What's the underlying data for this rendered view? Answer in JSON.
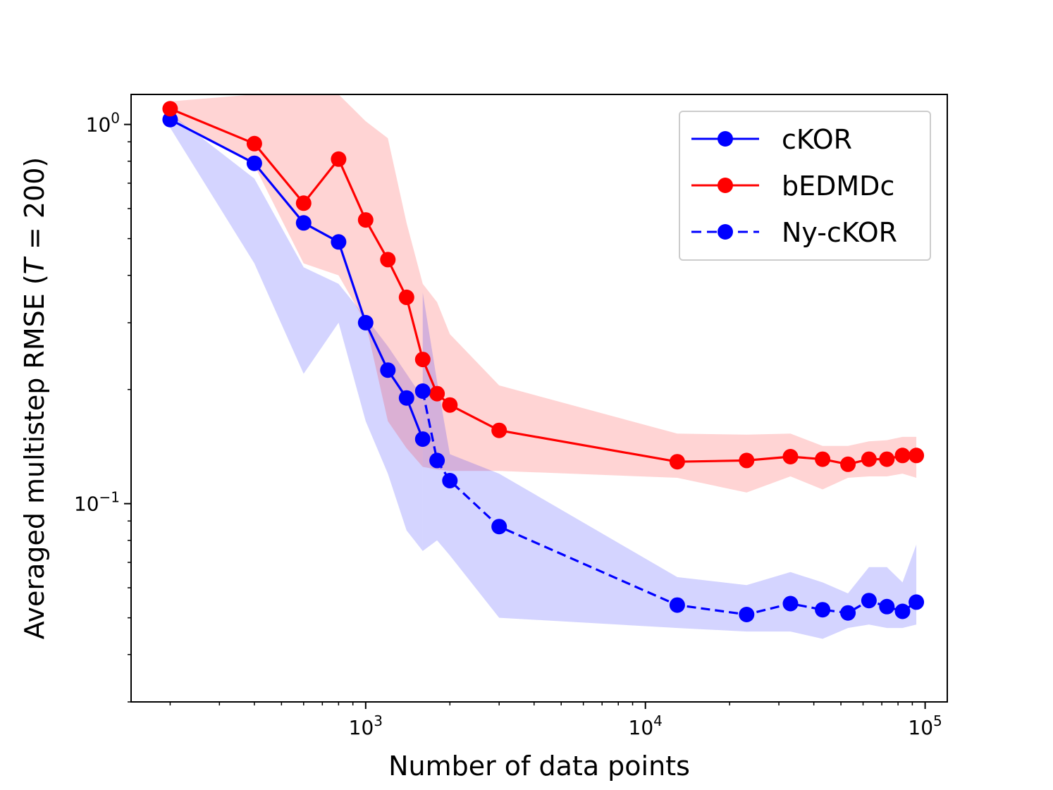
{
  "chart_data": {
    "type": "line",
    "xscale": "log",
    "yscale": "log",
    "xlabel": "Number of data points",
    "ylabel": "Averaged multistep RMSE (",
    "ylabel_var": "T",
    "ylabel_tail": " = 200)",
    "xlim": [
      145,
      120000
    ],
    "ylim": [
      0.03,
      1.2
    ],
    "x_ticks": [
      {
        "base": "10",
        "exp": "3",
        "value": 1000
      },
      {
        "base": "10",
        "exp": "4",
        "value": 10000
      },
      {
        "base": "10",
        "exp": "5",
        "value": 100000
      }
    ],
    "y_ticks": [
      {
        "base": "10",
        "exp": "0",
        "value": 1.0
      },
      {
        "base": "10",
        "exp": "−1",
        "value": 0.1
      }
    ],
    "series": [
      {
        "name": "cKOR",
        "color": "#0000ff",
        "linestyle": "solid",
        "x": [
          200,
          400,
          600,
          800,
          1000,
          1200,
          1400,
          1600
        ],
        "y": [
          1.03,
          0.79,
          0.55,
          0.49,
          0.3,
          0.225,
          0.19,
          0.148
        ],
        "lower": [
          0.98,
          0.43,
          0.22,
          0.3,
          0.165,
          0.12,
          0.085,
          0.075
        ],
        "upper": [
          1.07,
          0.72,
          0.42,
          0.38,
          0.31,
          0.26,
          0.22,
          0.19
        ]
      },
      {
        "name": "bEDMDc",
        "color": "#ff0000",
        "linestyle": "solid",
        "x": [
          200,
          400,
          600,
          800,
          1000,
          1200,
          1400,
          1600,
          1800,
          2000,
          3000,
          13000,
          23000,
          33000,
          43000,
          53000,
          63000,
          73000,
          83000,
          93000
        ],
        "y": [
          1.1,
          0.89,
          0.62,
          0.81,
          0.56,
          0.44,
          0.35,
          0.24,
          0.195,
          0.182,
          0.156,
          0.129,
          0.13,
          0.133,
          0.131,
          0.127,
          0.131,
          0.131,
          0.134,
          0.134
        ],
        "lower": [
          1.05,
          0.78,
          0.43,
          0.4,
          0.3,
          0.165,
          0.14,
          0.125,
          0.123,
          0.122,
          0.122,
          0.117,
          0.107,
          0.118,
          0.109,
          0.117,
          0.118,
          0.118,
          0.12,
          0.117
        ],
        "upper": [
          1.15,
          1.2,
          1.2,
          1.2,
          1.02,
          0.92,
          0.55,
          0.38,
          0.34,
          0.28,
          0.205,
          0.153,
          0.152,
          0.153,
          0.142,
          0.142,
          0.146,
          0.147,
          0.15,
          0.15
        ]
      },
      {
        "name": "Ny-cKOR",
        "color": "#0000ff",
        "linestyle": "dashed",
        "x": [
          1600,
          1800,
          2000,
          3000,
          13000,
          23000,
          33000,
          43000,
          53000,
          63000,
          73000,
          83000,
          93000
        ],
        "y": [
          0.198,
          0.13,
          0.115,
          0.087,
          0.054,
          0.051,
          0.0545,
          0.0525,
          0.0515,
          0.0555,
          0.0535,
          0.052,
          0.055
        ],
        "lower": [
          0.075,
          0.08,
          0.073,
          0.05,
          0.047,
          0.046,
          0.046,
          0.044,
          0.047,
          0.048,
          0.047,
          0.047,
          0.048
        ],
        "upper": [
          0.36,
          0.21,
          0.135,
          0.12,
          0.064,
          0.061,
          0.066,
          0.062,
          0.058,
          0.068,
          0.068,
          0.062,
          0.078
        ]
      }
    ],
    "legend_position": "top-right"
  }
}
